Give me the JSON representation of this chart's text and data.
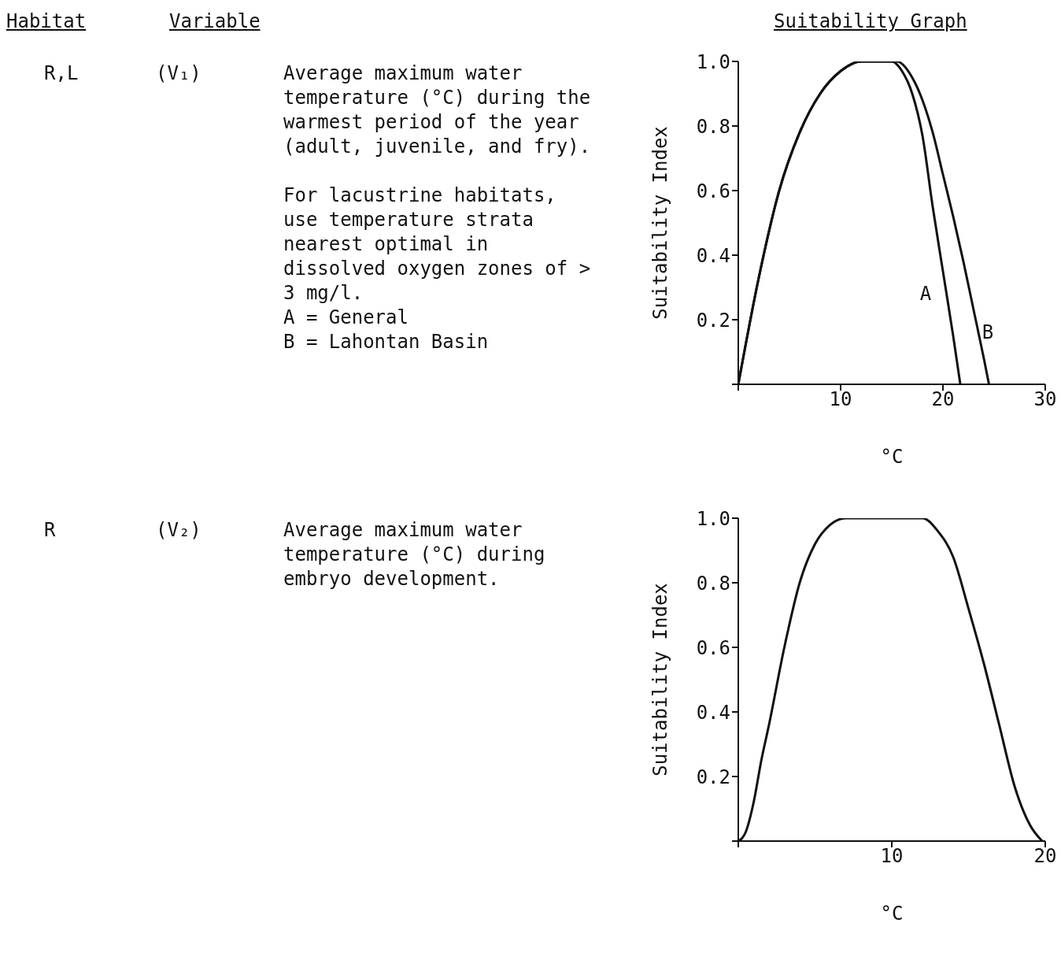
{
  "chart_data": [
    {
      "type": "other",
      "annotations": [
        "Habitat",
        "Variable",
        "Suitability Graph"
      ]
    },
    {
      "type": "line",
      "xlabel": "°C",
      "ylabel": "Suitability Index",
      "annotations": [
        "R,L",
        "(V₁)",
        "Average maximum water temperature (°C) during the warmest period of the year (adult, juvenile, and fry).",
        "For lacustrine habitats, use temperature strata nearest optimal in dissolved oxygen zones of > 3 mg/l.",
        "A = General",
        "B = Lahontan Basin"
      ],
      "xlim": [
        0,
        30
      ],
      "xticks": [
        {
          "value": 0,
          "label": null
        },
        10,
        20,
        30
      ],
      "ylim": [
        0,
        1
      ],
      "yticks": [
        {
          "value": 0,
          "label": null
        },
        {
          "value": 0.2,
          "label": "0.2"
        },
        {
          "value": 0.4,
          "label": "0.4"
        },
        {
          "value": 0.6,
          "label": "0.6"
        },
        {
          "value": 0.8,
          "label": "0.8"
        },
        {
          "value": 1,
          "label": "1.0"
        }
      ],
      "marker": "none",
      "line_style": "solid",
      "series": [
        {
          "name": "A",
          "color": "#111111",
          "x": [
            0,
            2,
            4,
            6,
            8,
            10,
            12,
            15,
            16,
            17,
            18,
            19,
            20,
            21,
            21.7
          ],
          "values": [
            0,
            0.33,
            0.6,
            0.78,
            0.9,
            0.97,
            1,
            1,
            0.97,
            0.9,
            0.77,
            0.55,
            0.35,
            0.15,
            0
          ]
        },
        {
          "name": "B",
          "color": "#111111",
          "x": [
            0,
            2,
            4,
            6,
            8,
            10,
            12,
            15.5,
            17,
            18,
            19,
            20,
            21,
            22,
            23,
            24,
            24.5
          ],
          "values": [
            0,
            0.33,
            0.6,
            0.78,
            0.9,
            0.97,
            1,
            1,
            0.95,
            0.88,
            0.78,
            0.65,
            0.52,
            0.38,
            0.23,
            0.08,
            0
          ]
        }
      ]
    },
    {
      "type": "line",
      "xlabel": "°C",
      "ylabel": "Suitability Index",
      "annotations": [
        "R",
        "(V₂)",
        "Average maximum water temperature (°C) during embryo development."
      ],
      "xlim": [
        0,
        20
      ],
      "xticks": [
        {
          "value": 0,
          "label": null
        },
        10,
        20
      ],
      "ylim": [
        0,
        1
      ],
      "yticks": [
        {
          "value": 0,
          "label": null
        },
        {
          "value": 0.2,
          "label": "0.2"
        },
        {
          "value": 0.4,
          "label": "0.4"
        },
        {
          "value": 0.6,
          "label": "0.6"
        },
        {
          "value": 0.8,
          "label": "0.8"
        },
        {
          "value": 1,
          "label": "1.0"
        }
      ],
      "marker": "none",
      "line_style": "solid",
      "series": [
        {
          "color": "#111111",
          "x": [
            0,
            0.5,
            1,
            1.5,
            2,
            3,
            4,
            5,
            6,
            7,
            12,
            13,
            14,
            15,
            16,
            17,
            18,
            19,
            19.8
          ],
          "values": [
            0,
            0.03,
            0.12,
            0.25,
            0.36,
            0.6,
            0.8,
            0.92,
            0.98,
            1,
            1,
            0.96,
            0.88,
            0.72,
            0.55,
            0.36,
            0.17,
            0.05,
            0
          ]
        }
      ]
    }
  ]
}
